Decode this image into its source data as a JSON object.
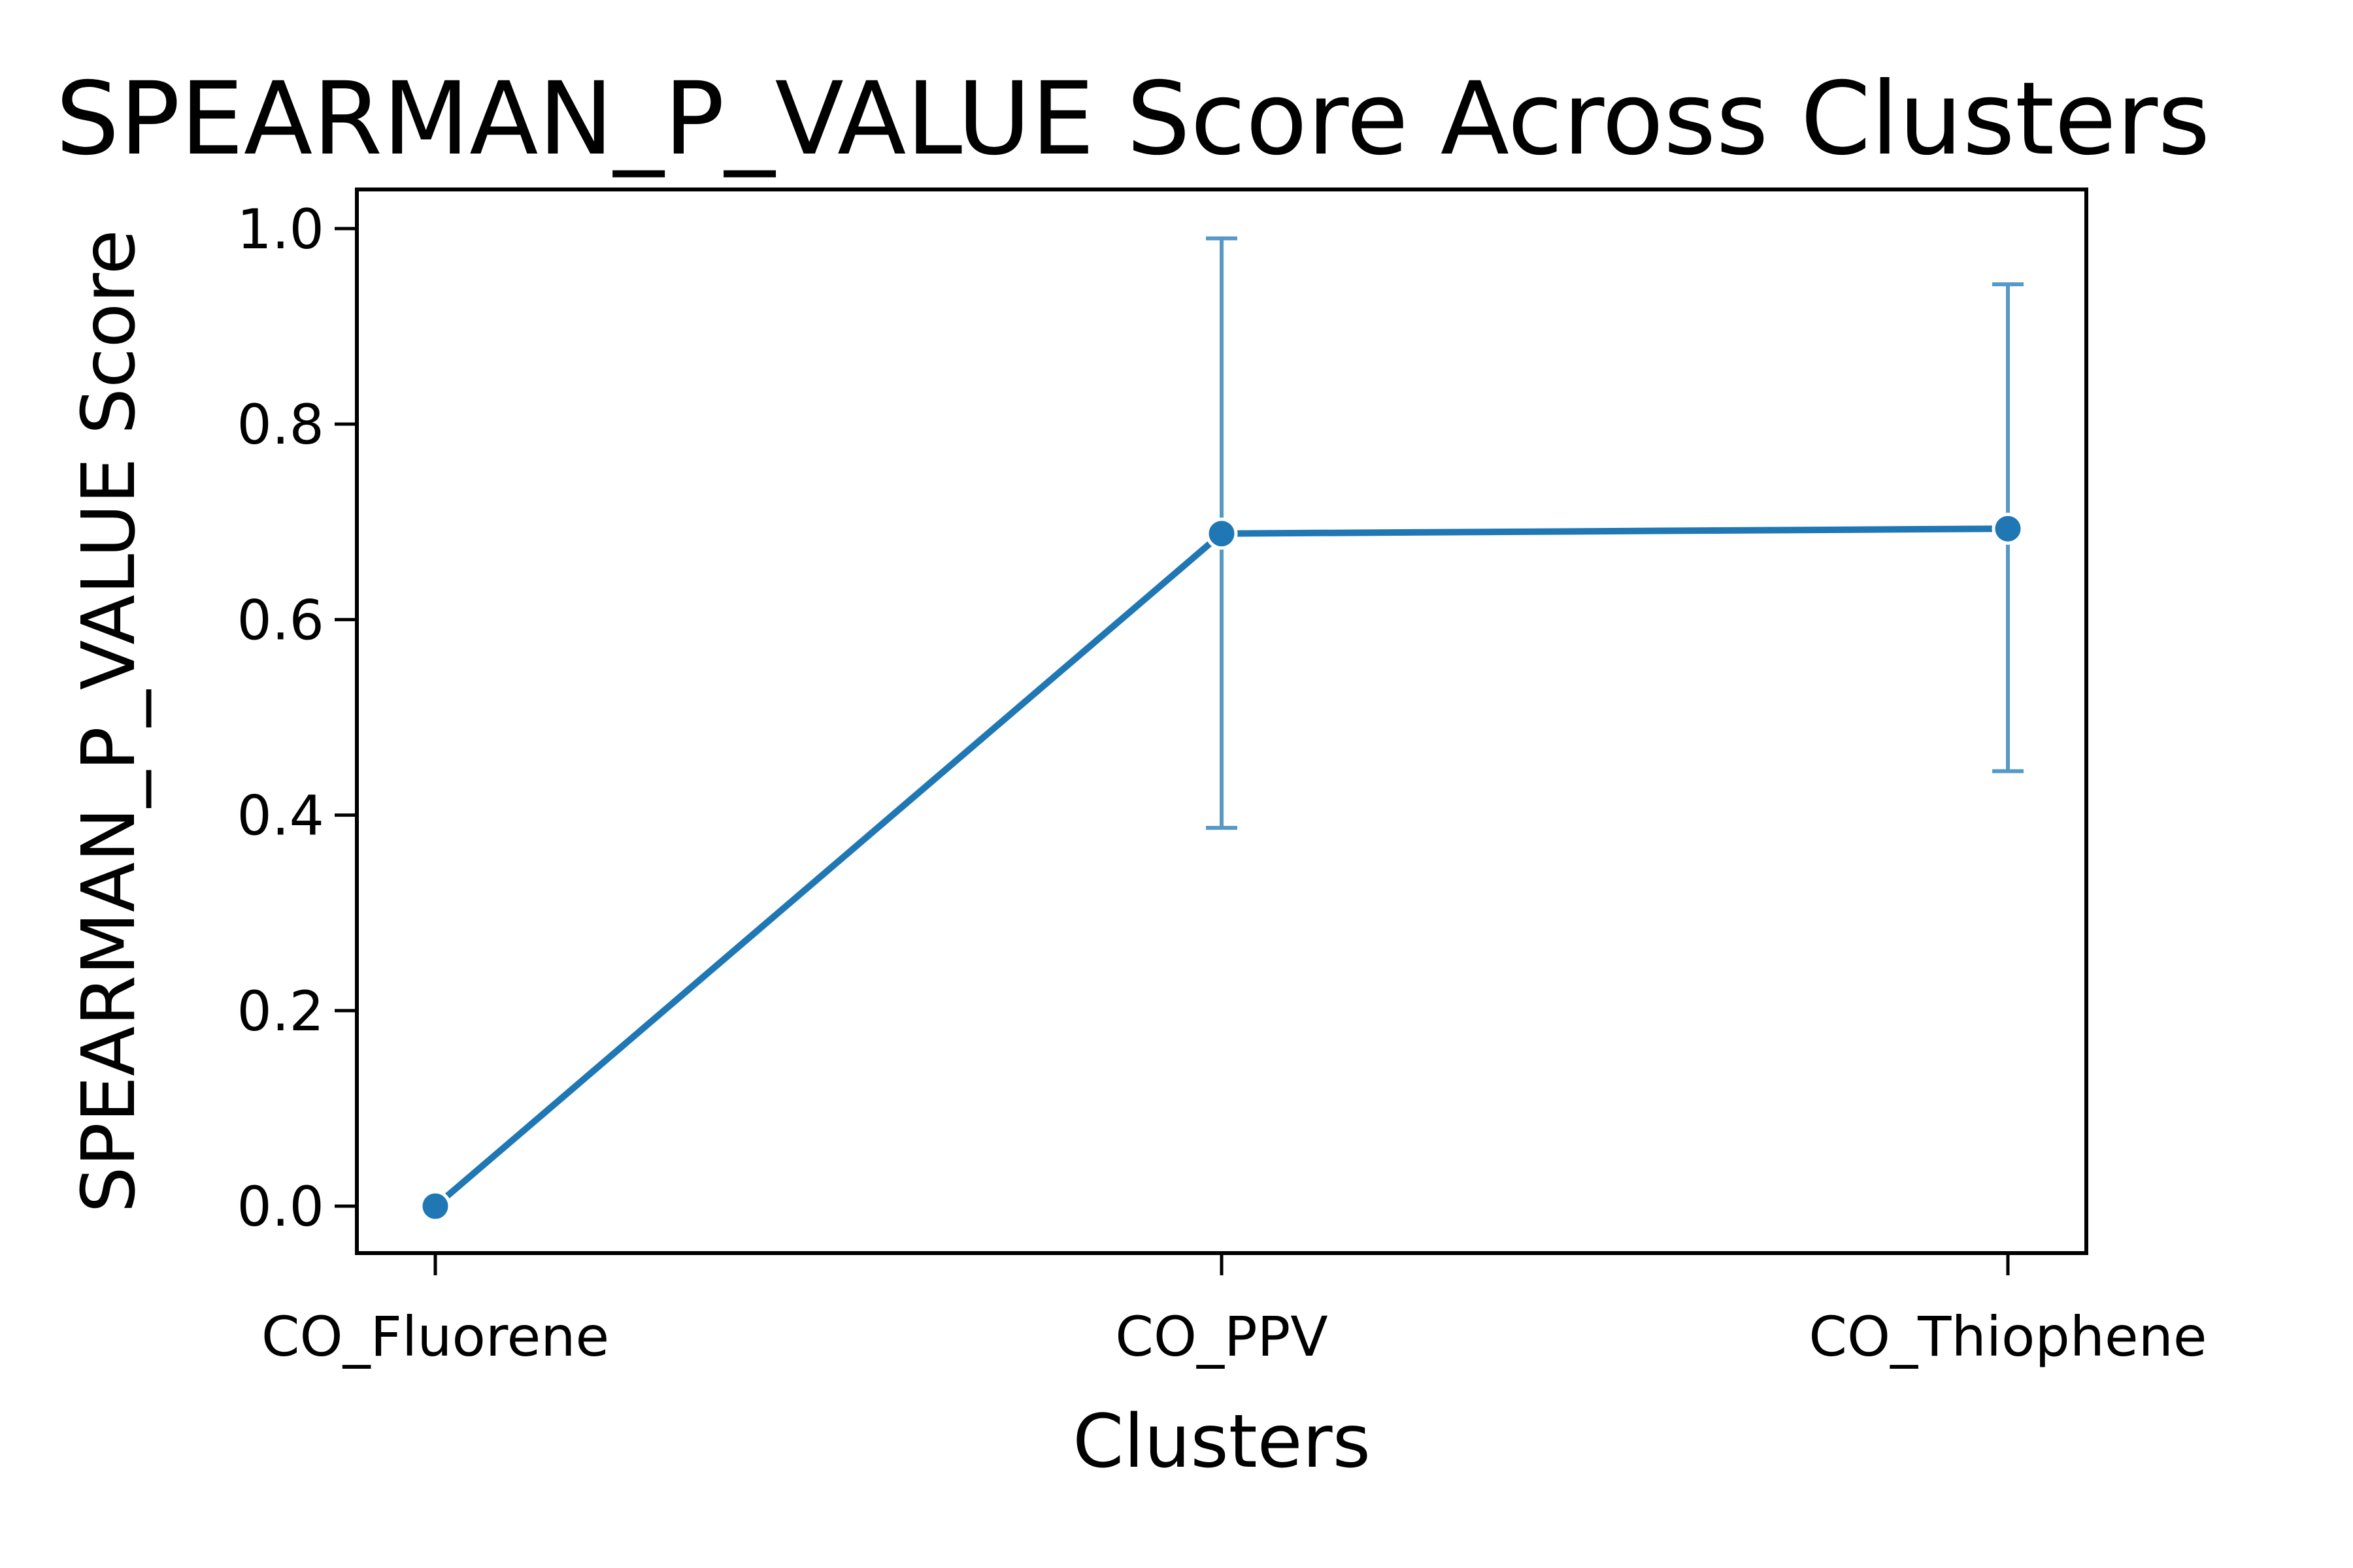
{
  "chart_data": {
    "type": "line",
    "title": "SPEARMAN_P_VALUE Score Across Clusters",
    "xlabel": "Clusters",
    "ylabel": "SPEARMAN_P_VALUE Score",
    "categories": [
      "CO_Fluorene",
      "CO_PPV",
      "CO_Thiophene"
    ],
    "series": [
      {
        "values": [
          0.0,
          0.688,
          0.693
        ],
        "error_low": [
          0.0,
          0.387,
          0.445
        ],
        "error_high": [
          0.0,
          0.99,
          0.943
        ],
        "color": "#1f77b4"
      }
    ],
    "ylim": [
      -0.048,
      1.04
    ],
    "yticks": [
      "0.0",
      "0.2",
      "0.4",
      "0.6",
      "0.8",
      "1.0"
    ],
    "grid": false,
    "legend": "none"
  }
}
